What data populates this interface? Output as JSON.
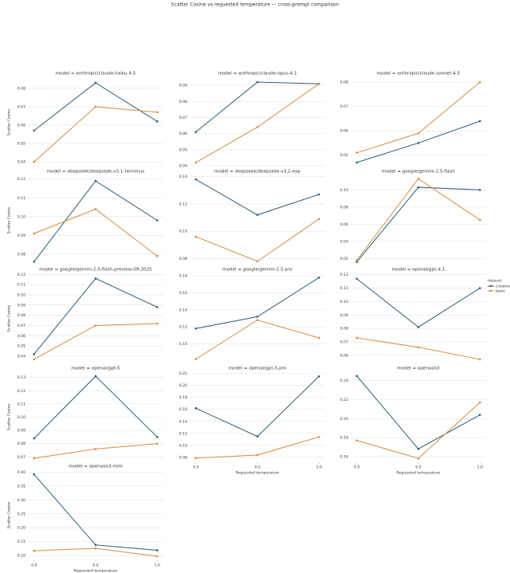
{
  "title": "Scatter Cosine vs requested temperature — cross-prompt comparison",
  "legend_title": "dataset",
  "chart_data": [
    {
      "type": "line",
      "title": "model = anthropic/claude-haiku-4.5",
      "ylabel": "Scatter Cosine",
      "x": [
        0,
        0.5,
        1.0
      ],
      "xlim": [
        -0.05,
        1.05
      ],
      "ylim": [
        0.037,
        0.086
      ],
      "yticks": [
        0.04,
        0.05,
        0.06,
        0.07,
        0.08
      ],
      "grid": true,
      "series": [
        {
          "name": "creative",
          "color": "#2b5d7d",
          "values": [
            0.057,
            0.083,
            0.062
          ]
        },
        {
          "name": "basic",
          "color": "#d98b3f",
          "values": [
            0.04,
            0.07,
            0.067
          ]
        }
      ]
    },
    {
      "type": "line",
      "title": "model = anthropic/claude-opus-4.1",
      "x": [
        0,
        0.5,
        1.0
      ],
      "xlim": [
        -0.05,
        1.05
      ],
      "ylim": [
        0.039,
        0.095
      ],
      "yticks": [
        0.04,
        0.05,
        0.06,
        0.07,
        0.08,
        0.09
      ],
      "grid": true,
      "series": [
        {
          "name": "creative",
          "color": "#2b5d7d",
          "values": [
            0.061,
            0.092,
            0.091
          ]
        },
        {
          "name": "basic",
          "color": "#d98b3f",
          "values": [
            0.042,
            0.064,
            0.091
          ]
        }
      ]
    },
    {
      "type": "line",
      "title": "model = anthropic/claude-sonnet-4.5",
      "x": [
        0,
        0.5,
        1.0
      ],
      "xlim": [
        -0.05,
        1.05
      ],
      "ylim": [
        0.045,
        0.082
      ],
      "yticks": [
        0.05,
        0.06,
        0.07,
        0.08
      ],
      "grid": true,
      "series": [
        {
          "name": "creative",
          "color": "#2b5d7d",
          "values": [
            0.047,
            0.055,
            0.064
          ]
        },
        {
          "name": "basic",
          "color": "#d98b3f",
          "values": [
            0.051,
            0.059,
            0.08
          ]
        }
      ]
    },
    {
      "type": "line",
      "title": "model = deepseek/deepseek-v3.1-terminus",
      "ylabel": "Scatter Cosine",
      "x": [
        0,
        0.5,
        1.0
      ],
      "xlim": [
        -0.05,
        1.05
      ],
      "ylim": [
        0.074,
        0.122
      ],
      "yticks": [
        0.08,
        0.09,
        {
          "value": 0.1,
          "label": "0.10"
        },
        0.11,
        0.12
      ],
      "grid": true,
      "series": [
        {
          "name": "creative",
          "color": "#2b5d7d",
          "values": [
            0.076,
            0.119,
            0.098
          ]
        },
        {
          "name": "basic",
          "color": "#d98b3f",
          "values": [
            0.091,
            0.104,
            0.079
          ]
        }
      ]
    },
    {
      "type": "line",
      "title": "model = deepseek/deepseek-v3.2-exp",
      "x": [
        0,
        0.5,
        1.0
      ],
      "xlim": [
        -0.05,
        1.05
      ],
      "ylim": [
        0.075,
        0.141
      ],
      "yticks": [
        0.08,
        {
          "value": 0.1,
          "label": "0.10"
        },
        0.12,
        0.14
      ],
      "grid": true,
      "series": [
        {
          "name": "creative",
          "color": "#2b5d7d",
          "values": [
            0.138,
            0.112,
            0.127
          ]
        },
        {
          "name": "basic",
          "color": "#d98b3f",
          "values": [
            0.096,
            0.078,
            0.109
          ]
        }
      ]
    },
    {
      "type": "line",
      "title": "model = google/gemini-2.5-flash",
      "x": [
        0,
        0.5,
        1.0
      ],
      "xlim": [
        -0.05,
        1.05
      ],
      "ylim": [
        0.012,
        0.117
      ],
      "yticks": [
        0.02,
        0.04,
        0.06,
        0.08,
        {
          "value": 0.1,
          "label": "0.10"
        }
      ],
      "grid": true,
      "series": [
        {
          "name": "creative",
          "color": "#2b5d7d",
          "values": [
            0.016,
            0.103,
            0.1
          ]
        },
        {
          "name": "basic",
          "color": "#d98b3f",
          "values": [
            0.018,
            0.113,
            0.065
          ]
        }
      ]
    },
    {
      "type": "line",
      "title": "model = google/gemini-2.5-flash-preview-09-2025",
      "ylabel": "Scatter Cosine",
      "x": [
        0,
        0.5,
        1.0
      ],
      "xlim": [
        -0.05,
        1.05
      ],
      "ylim": [
        0.033,
        0.121
      ],
      "yticks": [
        0.04,
        0.05,
        0.06,
        0.07,
        0.08,
        0.09,
        {
          "value": 0.1,
          "label": "0.10"
        },
        0.11,
        0.12
      ],
      "grid": true,
      "series": [
        {
          "name": "creative",
          "color": "#2b5d7d",
          "values": [
            0.042,
            0.116,
            0.088
          ]
        },
        {
          "name": "basic",
          "color": "#d98b3f",
          "values": [
            0.037,
            0.07,
            0.072
          ]
        }
      ]
    },
    {
      "type": "line",
      "title": "model = google/gemini-2.5-pro",
      "x": [
        0,
        0.5,
        1.0
      ],
      "xlim": [
        -0.05,
        1.05
      ],
      "ylim": [
        0.077,
        0.183
      ],
      "yticks": [
        {
          "value": 0.1,
          "label": "0.10"
        },
        0.12,
        0.14,
        0.16,
        0.18
      ],
      "grid": true,
      "series": [
        {
          "name": "creative",
          "color": "#2b5d7d",
          "values": [
            0.118,
            0.132,
            0.178
          ]
        },
        {
          "name": "basic",
          "color": "#d98b3f",
          "values": [
            0.082,
            0.128,
            0.107
          ]
        }
      ]
    },
    {
      "type": "line",
      "title": "model = openai/gpt-4.1",
      "x": [
        0,
        0.5,
        1.0
      ],
      "xlim": [
        -0.05,
        1.05
      ],
      "ylim": [
        0.054,
        0.121
      ],
      "yticks": [
        0.06,
        0.07,
        0.08,
        0.09,
        {
          "value": 0.1,
          "label": "0.10"
        },
        0.11,
        0.12
      ],
      "grid": true,
      "series": [
        {
          "name": "creative",
          "color": "#2b5d7d",
          "values": [
            0.117,
            0.081,
            0.11
          ]
        },
        {
          "name": "basic",
          "color": "#d98b3f",
          "values": [
            0.073,
            0.066,
            0.057
          ]
        }
      ]
    },
    {
      "type": "line",
      "title": "model = openai/gpt-5",
      "ylabel": "Scatter Cosine",
      "x": [
        0,
        0.5,
        1.0
      ],
      "xlim": [
        -0.05,
        1.05
      ],
      "ylim": [
        0.066,
        0.134
      ],
      "yticks": [
        0.07,
        0.08,
        0.09,
        {
          "value": 0.1,
          "label": "0.10"
        },
        0.11,
        0.12,
        0.13
      ],
      "grid": true,
      "series": [
        {
          "name": "creative",
          "color": "#2b5d7d",
          "values": [
            0.084,
            0.131,
            0.085
          ]
        },
        {
          "name": "basic",
          "color": "#d98b3f",
          "values": [
            0.069,
            0.076,
            0.08
          ]
        }
      ]
    },
    {
      "type": "line",
      "title": "model = openai/gpt-5-pro",
      "xlabel": "Requested temperature",
      "x": [
        0,
        0.5,
        1.0
      ],
      "xlim": [
        -0.05,
        1.05
      ],
      "xticks": [
        {
          "value": 0,
          "label": "0.0"
        },
        0.5,
        {
          "value": 1,
          "label": "1.0"
        }
      ],
      "ylim": [
        0.072,
        0.222
      ],
      "yticks": [
        0.08,
        {
          "value": 0.1,
          "label": "0.10"
        },
        0.12,
        0.14,
        0.16,
        0.18,
        {
          "value": 0.2,
          "label": "0.20"
        },
        0.22
      ],
      "grid": true,
      "series": [
        {
          "name": "creative",
          "color": "#2b5d7d",
          "values": [
            0.162,
            0.115,
            0.215
          ]
        },
        {
          "name": "basic",
          "color": "#d98b3f",
          "values": [
            0.079,
            0.084,
            0.114
          ]
        }
      ]
    },
    {
      "type": "line",
      "title": "model = openai/o3",
      "xlabel": "Requested temperature",
      "x": [
        0,
        0.5,
        1.0
      ],
      "xlim": [
        -0.05,
        1.05
      ],
      "xticks": [
        {
          "value": 0,
          "label": "0.0"
        },
        0.5,
        {
          "value": 1,
          "label": "1.0"
        }
      ],
      "ylim": [
        0.154,
        0.249
      ],
      "yticks": [
        0.16,
        0.18,
        {
          "value": 0.2,
          "label": "0.20"
        },
        0.22,
        0.24
      ],
      "grid": true,
      "series": [
        {
          "name": "creative",
          "color": "#2b5d7d",
          "values": [
            0.245,
            0.168,
            0.204
          ]
        },
        {
          "name": "basic",
          "color": "#d98b3f",
          "values": [
            0.177,
            0.158,
            0.217
          ]
        }
      ]
    },
    {
      "type": "line",
      "title": "model = openai/o3-mini",
      "ylabel": "Scatter Cosine",
      "xlabel": "Requested temperature",
      "x": [
        0,
        0.5,
        1.0
      ],
      "xlim": [
        -0.05,
        1.05
      ],
      "xticks": [
        {
          "value": 0,
          "label": "0.0"
        },
        0.5,
        {
          "value": 1,
          "label": "1.0"
        }
      ],
      "ylim": [
        0.083,
        0.407
      ],
      "yticks": [
        {
          "value": 0.1,
          "label": "0.10"
        },
        0.15,
        {
          "value": 0.2,
          "label": "0.20"
        },
        0.25,
        {
          "value": 0.3,
          "label": "0.30"
        },
        0.35,
        {
          "value": 0.4,
          "label": "0.40"
        }
      ],
      "grid": true,
      "series": [
        {
          "name": "creative",
          "color": "#2b5d7d",
          "values": [
            0.392,
            0.138,
            0.119
          ]
        },
        {
          "name": "basic",
          "color": "#d98b3f",
          "values": [
            0.117,
            0.126,
            0.097
          ]
        }
      ]
    }
  ]
}
